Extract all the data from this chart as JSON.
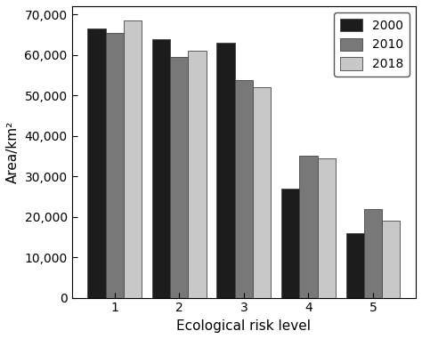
{
  "categories": [
    1,
    2,
    3,
    4,
    5
  ],
  "series": {
    "2000": [
      66500,
      63800,
      63000,
      27000,
      16000
    ],
    "2010": [
      65500,
      59500,
      53800,
      35000,
      22000
    ],
    "2018": [
      68500,
      61000,
      52000,
      34500,
      19000
    ]
  },
  "colors": {
    "2000": "#1c1c1c",
    "2010": "#787878",
    "2018": "#c8c8c8"
  },
  "ylabel": "Area/km²",
  "xlabel": "Ecological risk level",
  "ylim": [
    0,
    72000
  ],
  "yticks": [
    0,
    10000,
    20000,
    30000,
    40000,
    50000,
    60000,
    70000
  ],
  "legend_labels": [
    "2000",
    "2010",
    "2018"
  ],
  "bar_width": 0.28,
  "edge_color": "#444444"
}
